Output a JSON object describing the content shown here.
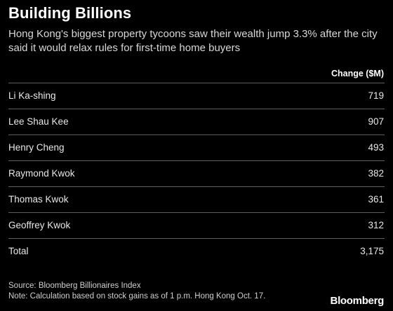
{
  "title": "Building Billions",
  "subtitle": "Hong Kong's biggest property tycoons saw their wealth jump 3.3% after the city said it would relax rules for first-time home buyers",
  "chart_data": {
    "type": "table",
    "column_header": "Change ($M)",
    "rows": [
      {
        "name": "Li Ka-shing",
        "value": "719"
      },
      {
        "name": "Lee Shau Kee",
        "value": "907"
      },
      {
        "name": "Henry Cheng",
        "value": "493"
      },
      {
        "name": "Raymond Kwok",
        "value": "382"
      },
      {
        "name": "Thomas Kwok",
        "value": "361"
      },
      {
        "name": "Geoffrey Kwok",
        "value": "312"
      }
    ],
    "total": {
      "name": "Total",
      "value": "3,175"
    }
  },
  "footer": {
    "source": "Source: Bloomberg Billionaires Index",
    "note": "Note: Calculation based on stock gains as of 1 p.m. Hong Kong Oct. 17."
  },
  "brand": "Bloomberg"
}
